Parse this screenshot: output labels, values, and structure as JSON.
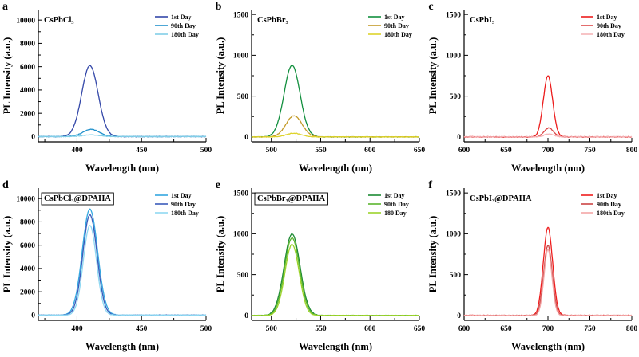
{
  "figure": {
    "background": "#ffffff"
  },
  "chart_data": [
    {
      "type": "line",
      "panel": "a",
      "title": "CsPbCl₃",
      "title_boxed": false,
      "xlabel": "Wavelength (nm)",
      "ylabel": "PL Intensity (a.u.)",
      "xlim": [
        370,
        500
      ],
      "xticks": [
        400,
        450,
        500
      ],
      "ylim": [
        -450,
        10900
      ],
      "yticks": [
        0,
        2000,
        4000,
        6000,
        8000,
        10000
      ],
      "legend_position": "top-right",
      "baseline_noise": 50,
      "series": [
        {
          "name": "1st Day",
          "color": "#3347a8",
          "peak_nm": 410,
          "peak_intensity": 6100,
          "fwhm_nm": 15
        },
        {
          "name": "90th Day",
          "color": "#2191cc",
          "peak_nm": 411,
          "peak_intensity": 620,
          "fwhm_nm": 15
        },
        {
          "name": "180th Day",
          "color": "#82cfe8",
          "peak_nm": 411,
          "peak_intensity": 150,
          "fwhm_nm": 15
        }
      ]
    },
    {
      "type": "line",
      "panel": "b",
      "title": "CsPbBr₃",
      "title_boxed": false,
      "xlabel": "Wavelength (nm)",
      "ylabel": "PL Intensity (a.u.)",
      "xlim": [
        480,
        650
      ],
      "xticks": [
        500,
        550,
        600,
        650
      ],
      "ylim": [
        -60,
        1560
      ],
      "yticks": [
        0,
        500,
        1000,
        1500
      ],
      "legend_position": "top-right",
      "baseline_noise": 7,
      "series": [
        {
          "name": "1st Day",
          "color": "#128f3e",
          "peak_nm": 521,
          "peak_intensity": 880,
          "fwhm_nm": 19
        },
        {
          "name": "90th Day",
          "color": "#c39a28",
          "peak_nm": 523,
          "peak_intensity": 260,
          "fwhm_nm": 19
        },
        {
          "name": "180th Day",
          "color": "#ded32c",
          "peak_nm": 523,
          "peak_intensity": 45,
          "fwhm_nm": 18
        }
      ]
    },
    {
      "type": "line",
      "panel": "c",
      "title": "CsPbI₃",
      "title_boxed": false,
      "xlabel": "Wavelength (nm)",
      "ylabel": "PL Intensity (a.u.)",
      "xlim": [
        600,
        800
      ],
      "xticks": [
        600,
        650,
        700,
        750,
        800
      ],
      "ylim": [
        -60,
        1560
      ],
      "yticks": [
        0,
        500,
        1000,
        1500
      ],
      "legend_position": "top-right",
      "baseline_noise": 10,
      "series": [
        {
          "name": "1st Day",
          "color": "#ec1c1c",
          "peak_nm": 700,
          "peak_intensity": 750,
          "fwhm_nm": 13
        },
        {
          "name": "90th Day",
          "color": "#dc4848",
          "peak_nm": 701,
          "peak_intensity": 110,
          "fwhm_nm": 13
        },
        {
          "name": "180th Day",
          "color": "#f5b5b8",
          "peak_nm": 701,
          "peak_intensity": 35,
          "fwhm_nm": 13
        }
      ]
    },
    {
      "type": "line",
      "panel": "d",
      "title": "CsPbCl₃@DPAHA",
      "title_boxed": true,
      "xlabel": "Wavelength (nm)",
      "ylabel": "PL Intensity (a.u.)",
      "xlim": [
        370,
        500
      ],
      "xticks": [
        400,
        450,
        500
      ],
      "ylim": [
        -450,
        10900
      ],
      "yticks": [
        0,
        2000,
        4000,
        6000,
        8000,
        10000
      ],
      "legend_position": "top-right",
      "baseline_noise": 50,
      "series": [
        {
          "name": "1st Day",
          "color": "#33a7e0",
          "peak_nm": 410,
          "peak_intensity": 9100,
          "fwhm_nm": 14
        },
        {
          "name": "90th Day",
          "color": "#3a5bbb",
          "peak_nm": 410,
          "peak_intensity": 8600,
          "fwhm_nm": 13
        },
        {
          "name": "180th Day",
          "color": "#8fd8f2",
          "peak_nm": 410,
          "peak_intensity": 7700,
          "fwhm_nm": 12
        }
      ]
    },
    {
      "type": "line",
      "panel": "e",
      "title": "CsPbBr₃@DPAHA",
      "title_boxed": true,
      "xlabel": "Wavelength (nm)",
      "ylabel": "PL Intensity (a.u.)",
      "xlim": [
        480,
        650
      ],
      "xticks": [
        500,
        550,
        600,
        650
      ],
      "ylim": [
        -60,
        1560
      ],
      "yticks": [
        0,
        500,
        1000,
        1500
      ],
      "legend_position": "top-right",
      "baseline_noise": 7,
      "series": [
        {
          "name": "1st Day",
          "color": "#1d8a34",
          "peak_nm": 521,
          "peak_intensity": 1000,
          "fwhm_nm": 19
        },
        {
          "name": "90th Day",
          "color": "#5cb52e",
          "peak_nm": 521,
          "peak_intensity": 950,
          "fwhm_nm": 18
        },
        {
          "name": "180 Day",
          "color": "#9cd32b",
          "peak_nm": 521,
          "peak_intensity": 870,
          "fwhm_nm": 17
        }
      ]
    },
    {
      "type": "line",
      "panel": "f",
      "title": "CsPbI₃@DPAHA",
      "title_boxed": false,
      "xlabel": "Wavelength (nm)",
      "ylabel": "PL Intensity (a.u.)",
      "xlim": [
        600,
        800
      ],
      "xticks": [
        600,
        650,
        700,
        750,
        800
      ],
      "ylim": [
        -60,
        1560
      ],
      "yticks": [
        0,
        500,
        1000,
        1500
      ],
      "legend_position": "top-right",
      "baseline_noise": 10,
      "series": [
        {
          "name": "1st Day",
          "color": "#ee1d1d",
          "peak_nm": 700,
          "peak_intensity": 1080,
          "fwhm_nm": 13
        },
        {
          "name": "90th Day",
          "color": "#cc4444",
          "peak_nm": 700,
          "peak_intensity": 860,
          "fwhm_nm": 12
        },
        {
          "name": "180th Day",
          "color": "#f3a6a6",
          "peak_nm": 700,
          "peak_intensity": 810,
          "fwhm_nm": 11
        }
      ]
    }
  ]
}
